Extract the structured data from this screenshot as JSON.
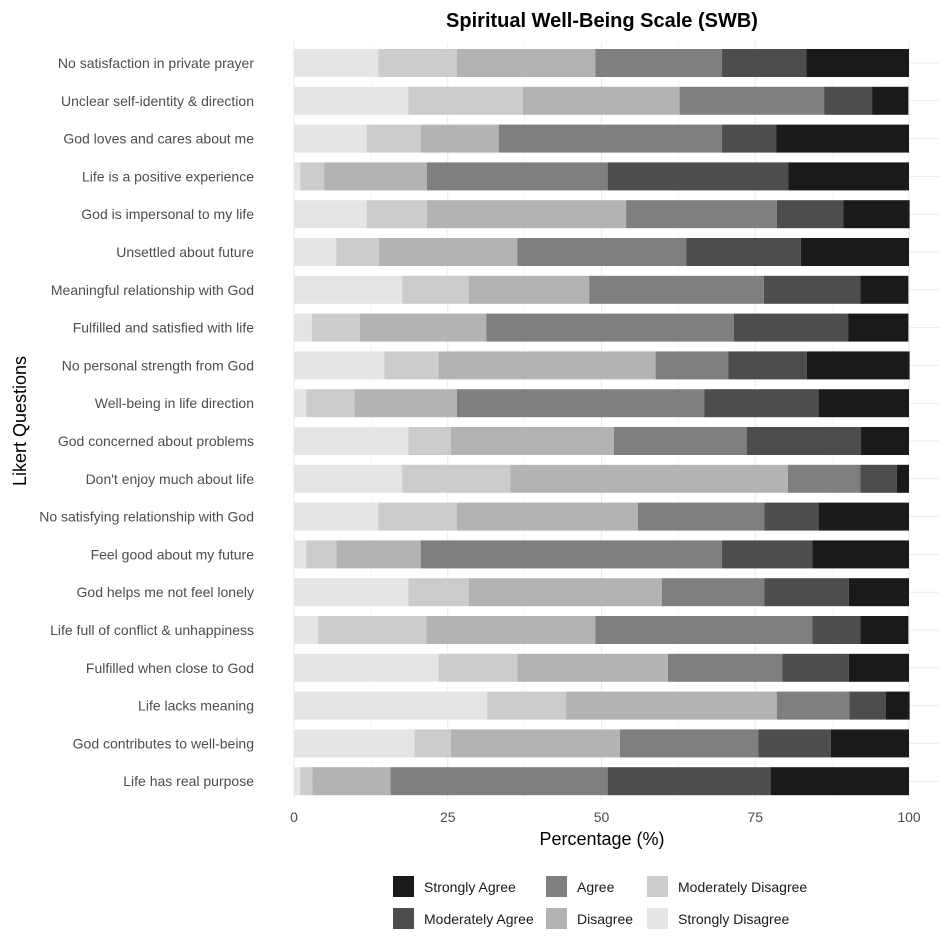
{
  "chart_data": {
    "type": "stacked-horizontal-bar",
    "title": "Spiritual Well-Being Scale (SWB)",
    "xlabel": "Percentage (%)",
    "ylabel": "Likert Questions",
    "xlim": [
      0,
      100
    ],
    "xticks": [
      0,
      25,
      50,
      75,
      100
    ],
    "categories": [
      "No satisfaction in private prayer",
      "Unclear self-identity & direction",
      "God loves and cares about me",
      "Life is a positive experience",
      "God is impersonal to my life",
      "Unsettled about future",
      "Meaningful relationship with God",
      "Fulfilled and satisfied with life",
      "No personal strength from God",
      "Well-being in life direction",
      "God concerned about problems",
      "Don't enjoy much about life",
      "No satisfying relationship with God",
      "Feel good about my future",
      "God helps me not feel lonely",
      "Life full of conflict & unhappiness",
      "Fulfilled when close to God",
      "Life lacks meaning",
      "God contributes to well-being",
      "Life has real purpose"
    ],
    "series": [
      {
        "name": "Strongly Disagree",
        "color": "#e5e5e5",
        "values": [
          13.7,
          18.6,
          11.8,
          1.0,
          11.8,
          6.9,
          17.6,
          2.9,
          14.7,
          2.0,
          18.6,
          17.6,
          13.7,
          2.0,
          18.6,
          3.9,
          23.5,
          31.4,
          19.6,
          1.0
        ]
      },
      {
        "name": "Moderately Disagree",
        "color": "#cccccc",
        "values": [
          12.8,
          18.6,
          8.8,
          3.9,
          9.8,
          6.9,
          10.8,
          7.8,
          8.8,
          7.8,
          6.9,
          17.6,
          12.8,
          4.9,
          9.8,
          17.6,
          12.8,
          12.8,
          5.9,
          2.0
        ]
      },
      {
        "name": "Disagree",
        "color": "#b3b3b3",
        "values": [
          22.5,
          25.5,
          12.7,
          16.7,
          32.4,
          22.5,
          19.6,
          20.6,
          35.3,
          16.7,
          26.5,
          45.1,
          29.4,
          13.7,
          31.4,
          27.5,
          24.5,
          34.3,
          27.5,
          12.7
        ]
      },
      {
        "name": "Agree",
        "color": "#7f7f7f",
        "values": [
          20.6,
          23.5,
          36.3,
          29.4,
          24.5,
          27.5,
          28.4,
          40.2,
          11.8,
          40.2,
          21.6,
          11.8,
          20.6,
          49.0,
          16.7,
          35.3,
          18.6,
          11.8,
          22.5,
          35.3
        ]
      },
      {
        "name": "Moderately Agree",
        "color": "#4d4d4d",
        "values": [
          13.7,
          7.8,
          8.8,
          29.4,
          10.8,
          18.6,
          15.7,
          18.6,
          12.8,
          18.6,
          18.6,
          5.9,
          8.8,
          14.7,
          13.7,
          7.8,
          10.8,
          5.9,
          11.8,
          26.5
        ]
      },
      {
        "name": "Strongly Agree",
        "color": "#1a1a1a",
        "values": [
          16.7,
          5.9,
          21.6,
          19.6,
          10.8,
          17.6,
          7.8,
          9.8,
          16.7,
          14.7,
          7.8,
          2.0,
          14.7,
          15.7,
          9.8,
          7.8,
          9.8,
          3.9,
          12.7,
          22.5
        ]
      }
    ],
    "legend": {
      "position": "bottom",
      "order": [
        "Strongly Agree",
        "Moderately Agree",
        "Agree",
        "Disagree",
        "Moderately Disagree",
        "Strongly Disagree"
      ]
    }
  }
}
